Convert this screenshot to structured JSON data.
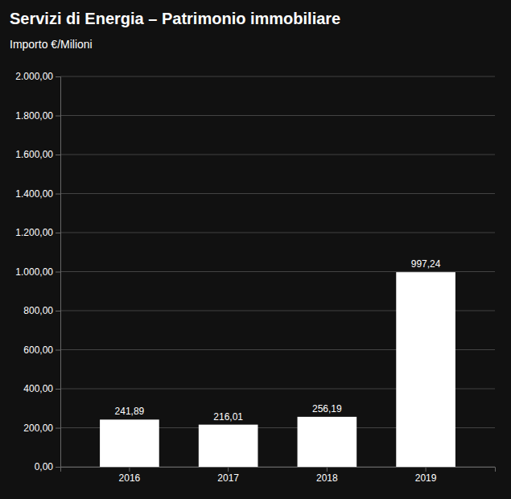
{
  "chart_data": {
    "type": "bar",
    "title": "Servizi di Energia – Patrimonio immobiliare",
    "subtitle": "Importo €/Milioni",
    "categories": [
      "2016",
      "2017",
      "2018",
      "2019"
    ],
    "values": [
      241.89,
      216.01,
      256.19,
      997.24
    ],
    "value_labels": [
      "241,89",
      "216,01",
      "256,19",
      "997,24"
    ],
    "data_labels": true,
    "color": "#ffffff",
    "ylim": [
      0,
      2000
    ],
    "yticks": [
      {
        "value": 0,
        "label": "0,00"
      },
      {
        "value": 200,
        "label": "200,00"
      },
      {
        "value": 400,
        "label": "400,00"
      },
      {
        "value": 600,
        "label": "600,00"
      },
      {
        "value": 800,
        "label": "800,00"
      },
      {
        "value": 1000,
        "label": "1.000,00"
      },
      {
        "value": 1200,
        "label": "1.200,00"
      },
      {
        "value": 1400,
        "label": "1.400,00"
      },
      {
        "value": 1600,
        "label": "1.600,00"
      },
      {
        "value": 1800,
        "label": "1.800,00"
      },
      {
        "value": 2000,
        "label": "2.000,00"
      }
    ],
    "grid": true
  }
}
